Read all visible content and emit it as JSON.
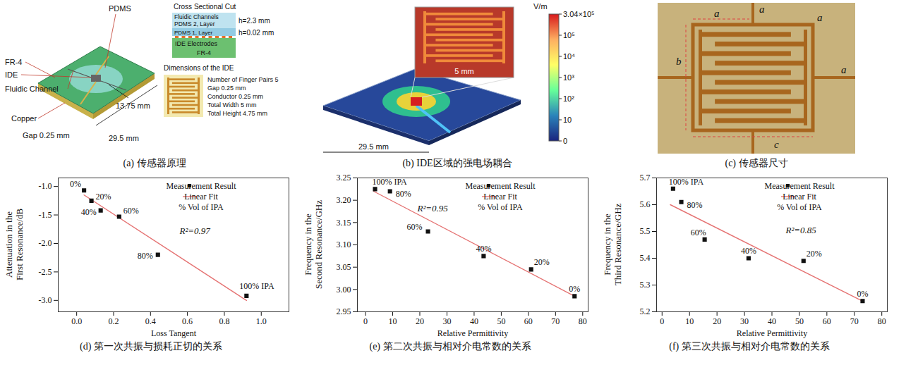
{
  "figure": {
    "a": {
      "caption": "(a) 传感器原理",
      "pdms": "PDMS",
      "left_labels": [
        "FR-4",
        "IDE",
        "Fluidic Channel"
      ],
      "copper": "Copper",
      "gap": "Gap 0.25 mm",
      "height_dim": "13.75 mm",
      "width_dim": "29.5 mm",
      "cross_section": {
        "title": "Cross Sectional Cut",
        "channels": "Fluidic Channels",
        "pdms2": "PDMS 2, Layer",
        "h2": "h=2.3 mm",
        "pdms1": "PDMS 1, Layer",
        "h1": "h=0.02 mm",
        "electrodes": "IDE Electrodes",
        "substrate": "FR-4"
      },
      "ide_dimensions": {
        "title": "Dimensions of the IDE",
        "lines": [
          "Number of Finger Pairs 5",
          "Gap 0.25 mm",
          "Conductor 0.25 mm",
          "Total Width 5 mm",
          "Total Height 4.75 mm"
        ]
      }
    },
    "b": {
      "caption": "(b) IDE区域的强电场耦合",
      "zoom_dim": "5 mm",
      "width_dim": "29.5 mm",
      "colorbar": {
        "unit": "V/m",
        "labels": [
          "3.04×10⁵",
          "10⁵",
          "10⁴",
          "10³",
          "10²",
          "10",
          "0"
        ]
      }
    },
    "c": {
      "caption": "(c) 传感器尺寸",
      "labels": [
        "a",
        "a",
        "a",
        "a",
        "b",
        "c"
      ]
    }
  },
  "chart_data": [
    {
      "type": "scatter",
      "caption": "(d) 第一次共振与损耗正切的关系",
      "xlabel": "Loss Tangent",
      "ylabel": "Attenuation in the First Resonance/dB",
      "xlim": [
        -0.1,
        1.15
      ],
      "ylim": [
        -3.2,
        -0.85
      ],
      "xticks": [
        {
          "value": 0,
          "label": "0.0"
        },
        0.2,
        0.4,
        0.6,
        0.8,
        {
          "value": 1,
          "label": "1.0"
        }
      ],
      "yticks": [
        {
          "value": -1,
          "label": "-1.0"
        },
        -1.5,
        {
          "value": -2,
          "label": "-2.0"
        },
        -2.5,
        {
          "value": -3,
          "label": "-3.0"
        }
      ],
      "legend": "top-right",
      "legend_note": "% Vol of IPA",
      "annotations": [
        {
          "text": "R²=0.97"
        }
      ],
      "series": [
        {
          "name": "Measurement Result",
          "type": "scatter",
          "marker": "square",
          "color": "#111111",
          "x": [
            0.04,
            0.08,
            0.13,
            0.23,
            0.44,
            0.92
          ],
          "values": [
            -1.07,
            -1.25,
            -1.42,
            -1.53,
            -2.2,
            -2.92
          ],
          "point_labels": [
            "0%",
            "20%",
            "40%",
            "60%",
            "80%",
            "100% IPA"
          ]
        },
        {
          "name": "Linear Fit",
          "type": "line",
          "line_style": "solid",
          "color": "#e57373",
          "x": [
            0.04,
            0.92
          ],
          "values": [
            -1.15,
            -3.0
          ]
        }
      ]
    },
    {
      "type": "scatter",
      "caption": "(e) 第二次共振与相对介电常数的关系",
      "xlabel": "Relative Permittivity",
      "ylabel": "Frequency in the Second Resonance/GHz",
      "xlim": [
        -3,
        82
      ],
      "ylim": [
        2.95,
        3.25
      ],
      "xticks": [
        0,
        10,
        20,
        30,
        40,
        50,
        60,
        70,
        80
      ],
      "yticks": [
        2.95,
        {
          "value": 3,
          "label": "3.00"
        },
        3.05,
        {
          "value": 3.1,
          "label": "3.10"
        },
        3.15,
        {
          "value": 3.2,
          "label": "3.20"
        },
        3.25
      ],
      "legend": "top-right",
      "legend_note": "% Vol of IPA",
      "annotations": [
        {
          "text": "R²=0.95"
        }
      ],
      "series": [
        {
          "name": "Measurement Result",
          "type": "scatter",
          "marker": "square",
          "color": "#111111",
          "x": [
            77,
            61,
            43.5,
            23,
            9,
            3.5
          ],
          "values": [
            2.985,
            3.045,
            3.075,
            3.13,
            3.22,
            3.225
          ],
          "point_labels": [
            "0%",
            "20%",
            "40%",
            "60%",
            "80%",
            "100% IPA"
          ]
        },
        {
          "name": "Linear Fit",
          "type": "line",
          "line_style": "solid",
          "color": "#e57373",
          "x": [
            3,
            77
          ],
          "values": [
            3.22,
            2.985
          ]
        }
      ]
    },
    {
      "type": "scatter",
      "caption": "(f) 第三次共振与相对介电常数的关系",
      "xlabel": "Relative Permittivity",
      "ylabel": "Frequency in the Third Resonance/GHz",
      "xlim": [
        -2,
        82
      ],
      "ylim": [
        5.2,
        5.7
      ],
      "xticks": [
        0,
        10,
        20,
        30,
        40,
        50,
        60,
        70,
        80
      ],
      "yticks": [
        5.2,
        5.3,
        5.4,
        5.5,
        5.6,
        5.7
      ],
      "legend": "top-right",
      "legend_note": "% Vol of IPA",
      "annotations": [
        {
          "text": "R²=0.85"
        }
      ],
      "series": [
        {
          "name": "Measurement Result",
          "type": "scatter",
          "marker": "square",
          "color": "#111111",
          "x": [
            73,
            51.5,
            31.5,
            15.5,
            7,
            4
          ],
          "values": [
            5.24,
            5.39,
            5.4,
            5.47,
            5.61,
            5.66
          ],
          "point_labels": [
            "0%",
            "20%",
            "40%",
            "60%",
            "80%",
            "100% IPA"
          ]
        },
        {
          "name": "Linear Fit",
          "type": "line",
          "line_style": "solid",
          "color": "#e57373",
          "x": [
            3,
            73
          ],
          "values": [
            5.6,
            5.24
          ]
        }
      ]
    }
  ]
}
